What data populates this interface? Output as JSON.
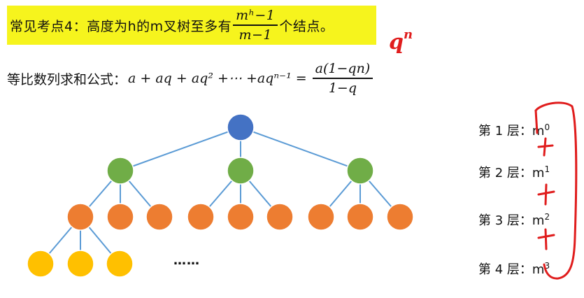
{
  "title": {
    "prefix": "常见考点4：高度为h的m叉树至多有",
    "fraction_num": "mʰ−1",
    "fraction_den": "m−1",
    "suffix": "个结点。"
  },
  "formula": {
    "label": "等比数列求和公式：",
    "expression": "a + aq + aq² +⋯ +aqⁿ⁻¹ =",
    "fraction_num": "a(1−qn)",
    "fraction_den": "1−q"
  },
  "annotation": {
    "base": "q",
    "exp": "n",
    "color": "#e01d1d"
  },
  "ellipsis": "……",
  "layers": [
    {
      "label": "第 1 层：",
      "base": "m",
      "power": "0"
    },
    {
      "label": "第 2 层：",
      "base": "m",
      "power": "1"
    },
    {
      "label": "第 3 层：",
      "base": "m",
      "power": "2"
    },
    {
      "label": "第 4 层：",
      "base": "m",
      "power": "3"
    }
  ],
  "colors": {
    "root": "#4472c4",
    "level2": "#70ad47",
    "level3": "#ed7d31",
    "level4": "#ffc000",
    "edge": "#5b9bd5",
    "highlight": "#f6f41d",
    "ink": "#e01d1d"
  }
}
